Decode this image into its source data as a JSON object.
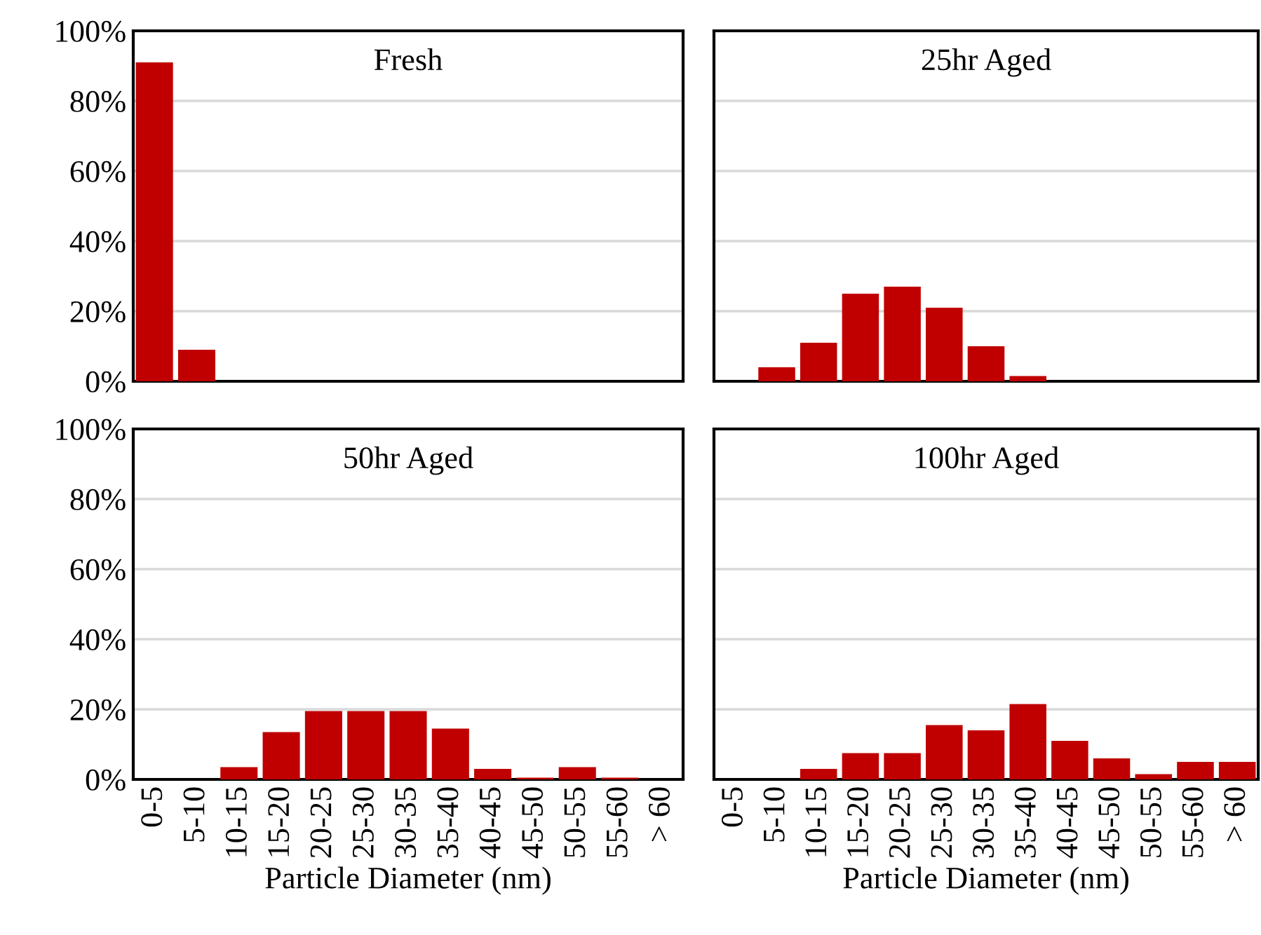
{
  "chart_data": [
    {
      "type": "bar",
      "title": "Fresh",
      "categories": [
        "0-5",
        "5-10",
        "10-15",
        "15-20",
        "20-25",
        "25-30",
        "30-35",
        "35-40",
        "40-45",
        "45-50",
        "50-55",
        "55-60",
        "> 60"
      ],
      "values": [
        91,
        9,
        0,
        0,
        0,
        0,
        0,
        0,
        0,
        0,
        0,
        0,
        0
      ],
      "color": "#c00000",
      "ylim": [
        0,
        100
      ],
      "yticks": [
        {
          "value": 0,
          "label": "0%"
        },
        {
          "value": 20,
          "label": "20%"
        },
        {
          "value": 40,
          "label": "40%"
        },
        {
          "value": 60,
          "label": "60%"
        },
        {
          "value": 80,
          "label": "80%"
        },
        {
          "value": 100,
          "label": "100%"
        }
      ],
      "grid": "y",
      "tick_labels": "y"
    },
    {
      "type": "bar",
      "title": "25hr Aged",
      "categories": [
        "0-5",
        "5-10",
        "10-15",
        "15-20",
        "20-25",
        "25-30",
        "30-35",
        "35-40",
        "40-45",
        "45-50",
        "50-55",
        "55-60",
        "> 60"
      ],
      "values": [
        0,
        4,
        11,
        25,
        27,
        21,
        10,
        1.5,
        0,
        0,
        0,
        0,
        0
      ],
      "color": "#c00000",
      "ylim": [
        0,
        100
      ],
      "yticks": [
        {
          "value": 0,
          "label": "0%"
        },
        {
          "value": 20,
          "label": "20%"
        },
        {
          "value": 40,
          "label": "40%"
        },
        {
          "value": 60,
          "label": "60%"
        },
        {
          "value": 80,
          "label": "80%"
        },
        {
          "value": 100,
          "label": "100%"
        }
      ],
      "grid": "y",
      "tick_labels": false
    },
    {
      "type": "bar",
      "title": "50hr Aged",
      "xlabel": "Particle Diameter (nm)",
      "categories": [
        "0-5",
        "5-10",
        "10-15",
        "15-20",
        "20-25",
        "25-30",
        "30-35",
        "35-40",
        "40-45",
        "45-50",
        "50-55",
        "55-60",
        "> 60"
      ],
      "values": [
        0,
        0,
        3.5,
        13.5,
        19.5,
        19.5,
        19.5,
        14.5,
        3,
        0.5,
        3.5,
        0.5,
        0
      ],
      "color": "#c00000",
      "ylim": [
        0,
        100
      ],
      "yticks": [
        {
          "value": 0,
          "label": "0%"
        },
        {
          "value": 20,
          "label": "20%"
        },
        {
          "value": 40,
          "label": "40%"
        },
        {
          "value": 60,
          "label": "60%"
        },
        {
          "value": 80,
          "label": "80%"
        },
        {
          "value": 100,
          "label": "100%"
        }
      ],
      "grid": "y"
    },
    {
      "type": "bar",
      "title": "100hr Aged",
      "xlabel": "Particle Diameter (nm)",
      "categories": [
        "0-5",
        "5-10",
        "10-15",
        "15-20",
        "20-25",
        "25-30",
        "30-35",
        "35-40",
        "40-45",
        "45-50",
        "50-55",
        "55-60",
        "> 60"
      ],
      "values": [
        0,
        0,
        3,
        7.5,
        7.5,
        15.5,
        14,
        21.5,
        11,
        6,
        1.5,
        5,
        5
      ],
      "color": "#c00000",
      "ylim": [
        0,
        100
      ],
      "yticks": [
        {
          "value": 0,
          "label": "0%"
        },
        {
          "value": 20,
          "label": "20%"
        },
        {
          "value": 40,
          "label": "40%"
        },
        {
          "value": 60,
          "label": "60%"
        },
        {
          "value": 80,
          "label": "80%"
        },
        {
          "value": 100,
          "label": "100%"
        }
      ],
      "grid": "y",
      "tick_labels": "x"
    }
  ]
}
